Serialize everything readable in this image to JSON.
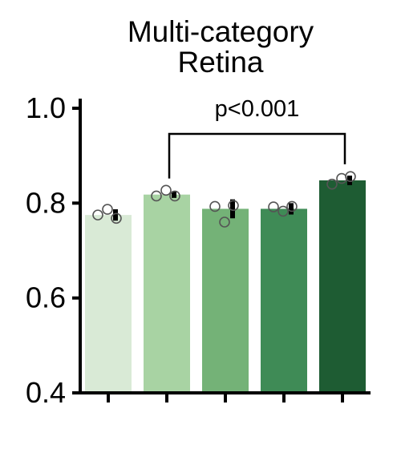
{
  "chart_data": {
    "type": "bar",
    "title": [
      "Multi-category",
      "Retina"
    ],
    "xlabel": "",
    "ylabel": "",
    "ylim": [
      0.4,
      1.0
    ],
    "yticks": [
      "0.4",
      "0.6",
      "0.8",
      "1.0"
    ],
    "categories": [
      "",
      "",
      "",
      "",
      ""
    ],
    "values": [
      0.775,
      0.818,
      0.788,
      0.788,
      0.848
    ],
    "errors": [
      0.012,
      0.007,
      0.02,
      0.012,
      0.01
    ],
    "points": [
      [
        0.775,
        0.787,
        0.768
      ],
      [
        0.815,
        0.827,
        0.815
      ],
      [
        0.793,
        0.76,
        0.795
      ],
      [
        0.792,
        0.783,
        0.793
      ],
      [
        0.84,
        0.852,
        0.856
      ]
    ],
    "colors": [
      "#d9ead6",
      "#a8d3a3",
      "#74b277",
      "#3f8b56",
      "#1e5c33"
    ],
    "grid": false,
    "annotation": {
      "text": "p<0.001",
      "from": 1,
      "to": 4
    }
  }
}
